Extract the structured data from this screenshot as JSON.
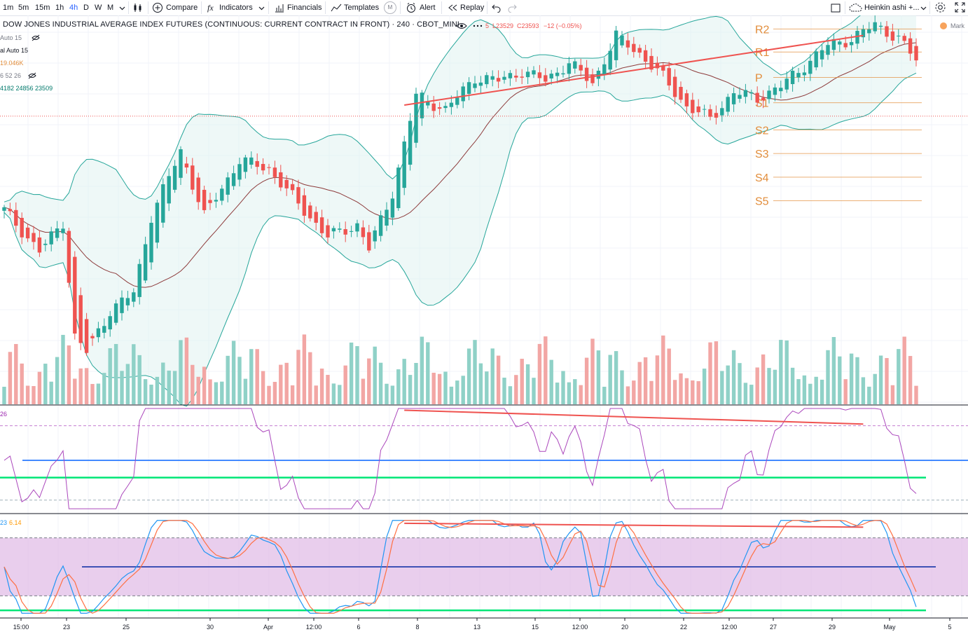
{
  "toolbar": {
    "intervals": [
      "1m",
      "5m",
      "15m",
      "1h",
      "4h",
      "D",
      "W",
      "M"
    ],
    "active_interval": "4h",
    "compare": "Compare",
    "indicators": "Indicators",
    "financials": "Financials",
    "templates": "Templates",
    "templates_badge": "M",
    "alert": "Alert",
    "replay": "Replay",
    "chart_type": "Heinkin ashi +...",
    "colors": {
      "accent": "#2962ff",
      "text": "#131722",
      "border": "#e0e3eb"
    }
  },
  "legend": {
    "title": "DOW JONES INDUSTRIAL AVERAGE INDEX FUTURES (CONTINUOUS: CURRENT CONTRACT IN FRONT) · 240 · CBOT_MINI",
    "ohlc_fragment": "5",
    "low": "L23529",
    "close": "C23593",
    "change": "−12 (−0.05%)",
    "market_label": "Mark",
    "rows": [
      {
        "text": "Auto 15",
        "color": "#787b86"
      },
      {
        "text": "al Auto 15",
        "color": "#131722"
      },
      {
        "text": "19.046K",
        "color": "#e28d3b"
      },
      {
        "text": "6 52 26",
        "color": "#787b86"
      },
      {
        "text": "4182  24856  23509",
        "color": "#00796b"
      }
    ]
  },
  "pivots": [
    "R2",
    "R1",
    "P",
    "S1",
    "S2",
    "S3",
    "S4",
    "S5"
  ],
  "rsi_pane": {
    "label": "26"
  },
  "stoch_pane": {
    "label_a": "23",
    "label_b": "6.14"
  },
  "time_axis": [
    "15:00",
    "23",
    "25",
    "30",
    "Apr",
    "12:00",
    "6",
    "8",
    "13",
    "15",
    "12:00",
    "20",
    "22",
    "12:00",
    "27",
    "29",
    "May",
    "5"
  ],
  "chart_data": {
    "type": "candlestick",
    "title": "DOW JONES INDUSTRIAL AVERAGE INDEX FUTURES (CONTINUOUS: CURRENT CONTRACT IN FRONT) · 240 · CBOT_MINI",
    "ylim": [
      18700,
      25300
    ],
    "anchors": [
      [
        0,
        22000
      ],
      [
        6,
        21300
      ],
      [
        10,
        21800
      ],
      [
        12,
        19850
      ],
      [
        14,
        19600
      ],
      [
        18,
        20300
      ],
      [
        22,
        20600
      ],
      [
        25,
        21900
      ],
      [
        30,
        23000
      ],
      [
        34,
        21900
      ],
      [
        40,
        22850
      ],
      [
        45,
        22700
      ],
      [
        50,
        22100
      ],
      [
        55,
        21550
      ],
      [
        60,
        21750
      ],
      [
        62,
        21350
      ],
      [
        66,
        22300
      ],
      [
        70,
        23950
      ],
      [
        75,
        23700
      ],
      [
        80,
        24250
      ],
      [
        84,
        24200
      ],
      [
        88,
        24350
      ],
      [
        92,
        24200
      ],
      [
        96,
        24500
      ],
      [
        100,
        24150
      ],
      [
        104,
        24950
      ],
      [
        108,
        24650
      ],
      [
        112,
        24250
      ],
      [
        116,
        23750
      ],
      [
        120,
        23550
      ],
      [
        124,
        24000
      ],
      [
        128,
        23900
      ],
      [
        132,
        24100
      ],
      [
        136,
        24450
      ],
      [
        140,
        24800
      ],
      [
        144,
        24900
      ],
      [
        148,
        25150
      ],
      [
        152,
        24900
      ],
      [
        155,
        24550
      ]
    ],
    "highlights": {
      "last_close": 23593,
      "last_low": 23529,
      "change": -12,
      "change_pct": -0.05
    },
    "pivot_levels": {
      "R2": 25070,
      "R1": 24680,
      "P": 24250,
      "S1": 23820,
      "S2": 23360,
      "S3": 22960,
      "S4": 22560,
      "S5": 22160
    },
    "rsi": {
      "lower": 30,
      "upper": 70,
      "mid": 50,
      "oversold_line": 40
    },
    "stochastic": {
      "lower": 20,
      "upper": 80,
      "mid": 50,
      "floor": 5
    }
  }
}
